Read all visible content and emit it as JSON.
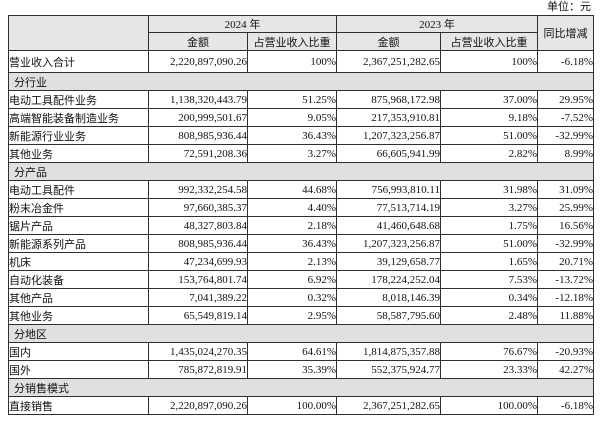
{
  "unit_label": "单位：元",
  "table": {
    "header": {
      "corner": "",
      "year_2024": "2024 年",
      "year_2023": "2023 年",
      "amount": "金额",
      "ratio": "占营业收入比重",
      "yoy": "同比增减"
    },
    "rows": [
      {
        "type": "data",
        "label": "营业收入合计",
        "a2024": "2,220,897,090.26",
        "r2024": "100%",
        "a2023": "2,367,251,282.65",
        "r2023": "100%",
        "yoy": "-6.18%"
      },
      {
        "type": "section",
        "label": "分行业"
      },
      {
        "type": "data",
        "label": "电动工具配件业务",
        "a2024": "1,138,320,443.79",
        "r2024": "51.25%",
        "a2023": "875,968,172.98",
        "r2023": "37.00%",
        "yoy": "29.95%"
      },
      {
        "type": "data",
        "label": "高端智能装备制造业务",
        "a2024": "200,999,501.67",
        "r2024": "9.05%",
        "a2023": "217,353,910.81",
        "r2023": "9.18%",
        "yoy": "-7.52%"
      },
      {
        "type": "data",
        "label": "新能源行业业务",
        "a2024": "808,985,936.44",
        "r2024": "36.43%",
        "a2023": "1,207,323,256.87",
        "r2023": "51.00%",
        "yoy": "-32.99%"
      },
      {
        "type": "data",
        "label": "其他业务",
        "a2024": "72,591,208.36",
        "r2024": "3.27%",
        "a2023": "66,605,941.99",
        "r2023": "2.82%",
        "yoy": "8.99%"
      },
      {
        "type": "section",
        "label": "分产品"
      },
      {
        "type": "data",
        "label": "电动工具配件",
        "a2024": "992,332,254.58",
        "r2024": "44.68%",
        "a2023": "756,993,810.11",
        "r2023": "31.98%",
        "yoy": "31.09%"
      },
      {
        "type": "data",
        "label": "粉末冶金件",
        "a2024": "97,660,385.37",
        "r2024": "4.40%",
        "a2023": "77,513,714.19",
        "r2023": "3.27%",
        "yoy": "25.99%"
      },
      {
        "type": "data",
        "label": "锯片产品",
        "a2024": "48,327,803.84",
        "r2024": "2.18%",
        "a2023": "41,460,648.68",
        "r2023": "1.75%",
        "yoy": "16.56%"
      },
      {
        "type": "data",
        "label": "新能源系列产品",
        "a2024": "808,985,936.44",
        "r2024": "36.43%",
        "a2023": "1,207,323,256.87",
        "r2023": "51.00%",
        "yoy": "-32.99%"
      },
      {
        "type": "data",
        "label": "机床",
        "a2024": "47,234,699.93",
        "r2024": "2.13%",
        "a2023": "39,129,658.77",
        "r2023": "1.65%",
        "yoy": "20.71%"
      },
      {
        "type": "data",
        "label": "自动化装备",
        "a2024": "153,764,801.74",
        "r2024": "6.92%",
        "a2023": "178,224,252.04",
        "r2023": "7.53%",
        "yoy": "-13.72%"
      },
      {
        "type": "data",
        "label": "其他产品",
        "a2024": "7,041,389.22",
        "r2024": "0.32%",
        "a2023": "8,018,146.39",
        "r2023": "0.34%",
        "yoy": "-12.18%"
      },
      {
        "type": "data",
        "label": "其他业务",
        "a2024": "65,549,819.14",
        "r2024": "2.95%",
        "a2023": "58,587,795.60",
        "r2023": "2.48%",
        "yoy": "11.88%"
      },
      {
        "type": "section",
        "label": "分地区"
      },
      {
        "type": "data",
        "label": "国内",
        "a2024": "1,435,024,270.35",
        "r2024": "64.61%",
        "a2023": "1,814,875,357.88",
        "r2023": "76.67%",
        "yoy": "-20.93%"
      },
      {
        "type": "data",
        "label": "国外",
        "a2024": "785,872,819.91",
        "r2024": "35.39%",
        "a2023": "552,375,924.77",
        "r2023": "23.33%",
        "yoy": "42.27%"
      },
      {
        "type": "section",
        "label": "分销售模式"
      },
      {
        "type": "data",
        "label": "直接销售",
        "a2024": "2,220,897,090.26",
        "r2024": "100.00%",
        "a2023": "2,367,251,282.65",
        "r2023": "100.00%",
        "yoy": "-6.18%"
      }
    ]
  },
  "colors": {
    "header_bg": "#e6e6e6",
    "section_bg": "#e0e0e0",
    "border": "#2f2f2f"
  }
}
